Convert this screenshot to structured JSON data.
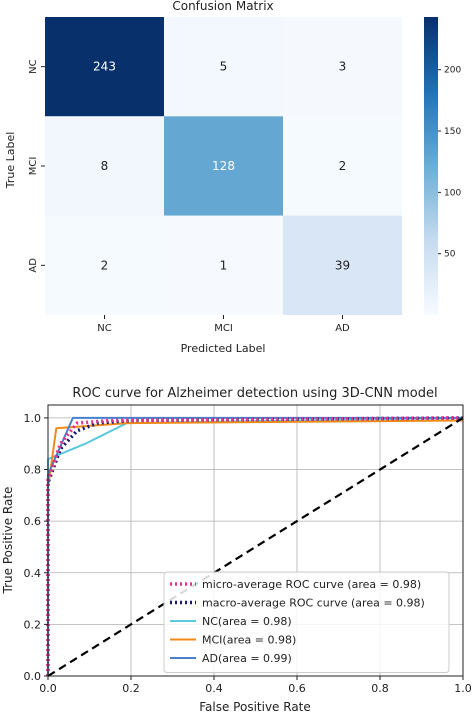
{
  "chart_data": [
    {
      "type": "heatmap",
      "title": "Confusion Matrix",
      "xlabel": "Predicted Label",
      "ylabel": "True Label",
      "x_categories": [
        "NC",
        "MCI",
        "AD"
      ],
      "y_categories": [
        "NC",
        "MCI",
        "AD"
      ],
      "values": [
        [
          243,
          5,
          3
        ],
        [
          8,
          128,
          2
        ],
        [
          2,
          1,
          39
        ]
      ],
      "colormap": "Blues",
      "colorbar": {
        "min": 0,
        "max": 243,
        "ticks": [
          50,
          100,
          150,
          200
        ]
      }
    },
    {
      "type": "line",
      "title": "ROC curve for Alzheimer detection using 3D-CNN model",
      "xlabel": "False Positive Rate",
      "ylabel": "True Positive Rate",
      "xlim": [
        0,
        1
      ],
      "ylim": [
        0,
        1.05
      ],
      "xticks": [
        "0.0",
        "0.2",
        "0.4",
        "0.6",
        "0.8",
        "1.0"
      ],
      "yticks": [
        "0.0",
        "0.2",
        "0.4",
        "0.6",
        "0.8",
        "1.0"
      ],
      "grid": true,
      "legend_position": "lower-right",
      "series": [
        {
          "name": "micro-average ROC curve (area = 0.98)",
          "color": "#e8338c",
          "dash": "dotted",
          "x": [
            0,
            0.0,
            0.03,
            0.07,
            0.15,
            1.0
          ],
          "y": [
            0,
            0.76,
            0.9,
            0.98,
            0.99,
            1.0
          ]
        },
        {
          "name": "macro-average ROC curve (area = 0.98)",
          "color": "#1a1a6e",
          "dash": "dotted",
          "x": [
            0,
            0.0,
            0.03,
            0.07,
            0.12,
            0.2,
            1.0
          ],
          "y": [
            0,
            0.75,
            0.88,
            0.95,
            0.98,
            0.99,
            1.0
          ]
        },
        {
          "name": "NC(area = 0.98)",
          "color": "#5bc8de",
          "dash": "solid",
          "x": [
            0,
            0.0,
            0.09,
            0.19,
            1.0
          ],
          "y": [
            0,
            0.84,
            0.9,
            0.98,
            1.0
          ]
        },
        {
          "name": "MCI(area = 0.98)",
          "color": "#f28a1a",
          "dash": "solid",
          "x": [
            0,
            0.0,
            0.02,
            0.19,
            1.0
          ],
          "y": [
            0,
            0.73,
            0.96,
            0.98,
            0.99
          ]
        },
        {
          "name": "AD(area = 0.99)",
          "color": "#4a7fc9",
          "dash": "solid",
          "x": [
            0,
            0.0,
            0.06,
            1.0
          ],
          "y": [
            0,
            0.78,
            1.0,
            1.0
          ]
        },
        {
          "name": "",
          "color": "#000000",
          "dash": "dashed",
          "x": [
            0,
            1
          ],
          "y": [
            0,
            1
          ]
        }
      ]
    }
  ]
}
